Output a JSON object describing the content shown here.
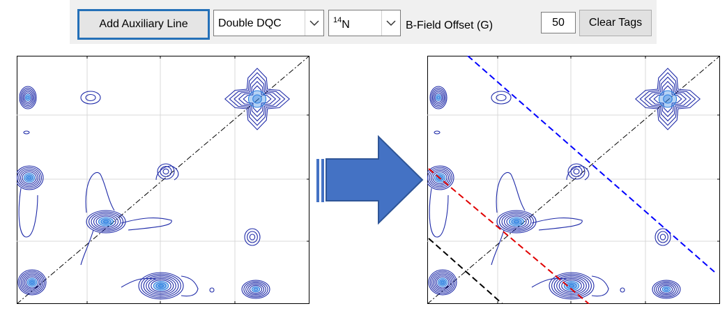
{
  "toolbar": {
    "add_line_label": "Add Auxiliary Line",
    "mode_select": {
      "value": "Double DQC",
      "arrow_icon": "chevron-down-icon"
    },
    "nucleus_select": {
      "sup": "14",
      "main": "N",
      "arrow_icon": "chevron-down-icon"
    },
    "offset_label": "B-Field Offset (G)",
    "offset_value": "50",
    "clear_label": "Clear Tags"
  },
  "colors": {
    "contour": "#1e2aa8",
    "contour_core": "#2a7fe0",
    "diagonal": "#000000",
    "aux_line_1": "#0000ff",
    "aux_line_2": "#e00000",
    "aux_line_3": "#000000",
    "arrow_fill": "#4472c4",
    "arrow_stroke": "#2f5597"
  },
  "arrow_icon": "right-arrow-icon"
}
